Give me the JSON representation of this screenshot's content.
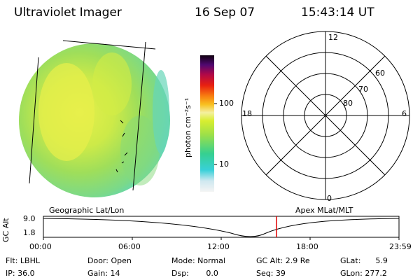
{
  "header": {
    "title": "Ultraviolet Imager",
    "date": "16 Sep 07",
    "time": "15:43:14 UT"
  },
  "colorbar": {
    "unit_label": "photon cm⁻²s⁻¹",
    "tick_100": "100",
    "tick_10": "10"
  },
  "polar": {
    "label_12": "12",
    "label_18": "18",
    "label_6": "6",
    "label_0": "0",
    "label_60": "60",
    "label_70": "70",
    "label_80": "80"
  },
  "coord_labels": {
    "left": "Geographic Lat/Lon",
    "right": "Apex MLat/MLT"
  },
  "timeline": {
    "axis_label": "GC Alt",
    "y_top": "9.0",
    "y_bottom": "1.8",
    "ticks": [
      "00:00",
      "06:00",
      "12:00",
      "18:00",
      "23:59"
    ],
    "marker_time": "15:43"
  },
  "status": {
    "flt": "Flt: LBHL",
    "ip": "IP: 36.0",
    "door": "Door: Open",
    "gain": "Gain: 14",
    "mode": "Mode: Normal",
    "dsp": "Dsp:       0.0",
    "gcalt": "GC Alt: 2.9 Re",
    "seq": "Seq: 39",
    "glat": "GLat:      5.9",
    "glon": "GLon: 277.2"
  },
  "colors": {
    "marker": "#e00000"
  }
}
